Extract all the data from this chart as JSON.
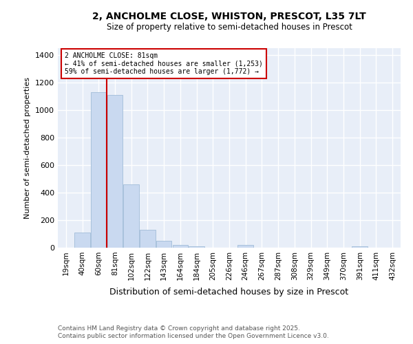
{
  "title_line1": "2, ANCHOLME CLOSE, WHISTON, PRESCOT, L35 7LT",
  "title_line2": "Size of property relative to semi-detached houses in Prescot",
  "xlabel": "Distribution of semi-detached houses by size in Prescot",
  "ylabel": "Number of semi-detached properties",
  "annotation_title": "2 ANCHOLME CLOSE: 81sqm",
  "annotation_line2": "← 41% of semi-detached houses are smaller (1,253)",
  "annotation_line3": "59% of semi-detached houses are larger (1,772) →",
  "footnote1": "Contains HM Land Registry data © Crown copyright and database right 2025.",
  "footnote2": "Contains public sector information licensed under the Open Government Licence v3.0.",
  "bar_color": "#c9d9f0",
  "bar_edge_color": "#a0bcd8",
  "red_line_color": "#cc0000",
  "background_color": "#e8eef8",
  "grid_color": "#ffffff",
  "categories": [
    "19sqm",
    "40sqm",
    "60sqm",
    "81sqm",
    "102sqm",
    "122sqm",
    "143sqm",
    "164sqm",
    "184sqm",
    "205sqm",
    "226sqm",
    "246sqm",
    "267sqm",
    "287sqm",
    "308sqm",
    "329sqm",
    "349sqm",
    "370sqm",
    "391sqm",
    "411sqm",
    "432sqm"
  ],
  "values": [
    0,
    110,
    1130,
    1110,
    460,
    130,
    50,
    20,
    10,
    0,
    0,
    20,
    0,
    0,
    0,
    0,
    0,
    0,
    10,
    0,
    0
  ],
  "ylim": [
    0,
    1450
  ],
  "yticks": [
    0,
    200,
    400,
    600,
    800,
    1000,
    1200,
    1400
  ]
}
